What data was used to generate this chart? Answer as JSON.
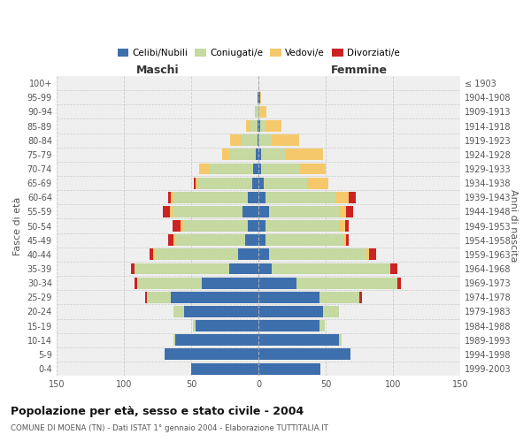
{
  "age_groups": [
    "0-4",
    "5-9",
    "10-14",
    "15-19",
    "20-24",
    "25-29",
    "30-34",
    "35-39",
    "40-44",
    "45-49",
    "50-54",
    "55-59",
    "60-64",
    "65-69",
    "70-74",
    "75-79",
    "80-84",
    "85-89",
    "90-94",
    "95-99",
    "100+"
  ],
  "birth_years": [
    "1999-2003",
    "1994-1998",
    "1989-1993",
    "1984-1988",
    "1979-1983",
    "1974-1978",
    "1969-1973",
    "1964-1968",
    "1959-1963",
    "1954-1958",
    "1949-1953",
    "1944-1948",
    "1939-1943",
    "1934-1938",
    "1929-1933",
    "1924-1928",
    "1919-1923",
    "1914-1918",
    "1909-1913",
    "1904-1908",
    "≤ 1903"
  ],
  "male": {
    "celibi": [
      50,
      70,
      62,
      47,
      55,
      65,
      42,
      22,
      15,
      10,
      8,
      12,
      8,
      5,
      4,
      2,
      1,
      1,
      0,
      1,
      0
    ],
    "coniugati": [
      0,
      0,
      1,
      2,
      8,
      18,
      48,
      70,
      62,
      52,
      48,
      52,
      55,
      40,
      32,
      20,
      12,
      5,
      2,
      0,
      0
    ],
    "vedovi": [
      0,
      0,
      0,
      0,
      0,
      0,
      0,
      0,
      1,
      1,
      2,
      2,
      2,
      2,
      8,
      5,
      8,
      3,
      1,
      0,
      0
    ],
    "divorziati": [
      0,
      0,
      0,
      0,
      0,
      1,
      2,
      3,
      3,
      4,
      6,
      5,
      2,
      1,
      0,
      0,
      0,
      0,
      0,
      0,
      0
    ]
  },
  "female": {
    "nubili": [
      46,
      68,
      60,
      45,
      48,
      45,
      28,
      10,
      8,
      5,
      5,
      8,
      5,
      4,
      2,
      2,
      0,
      1,
      0,
      1,
      0
    ],
    "coniugate": [
      0,
      0,
      2,
      4,
      12,
      30,
      75,
      88,
      72,
      58,
      55,
      52,
      52,
      32,
      28,
      18,
      10,
      4,
      1,
      0,
      0
    ],
    "vedove": [
      0,
      0,
      0,
      0,
      0,
      0,
      0,
      0,
      2,
      2,
      4,
      5,
      10,
      16,
      20,
      28,
      20,
      12,
      5,
      1,
      0
    ],
    "divorziate": [
      0,
      0,
      0,
      0,
      0,
      2,
      3,
      5,
      5,
      2,
      3,
      5,
      5,
      0,
      0,
      0,
      0,
      0,
      0,
      0,
      0
    ]
  },
  "colors": {
    "celibi_nubili": "#3d6fad",
    "coniugati_e": "#c5d9a0",
    "vedovi_e": "#f5c96b",
    "divorziati_e": "#cc2222"
  },
  "xlim": 150,
  "title": "Popolazione per età, sesso e stato civile - 2004",
  "subtitle": "COMUNE DI MOENA (TN) - Dati ISTAT 1° gennaio 2004 - Elaborazione TUTTITALIA.IT",
  "ylabel_left": "Fasce di età",
  "ylabel_right": "Anni di nascita",
  "xlabel_maschi": "Maschi",
  "xlabel_femmine": "Femmine",
  "bg_color": "#ffffff",
  "grid_color": "#cccccc",
  "bar_height": 0.8
}
